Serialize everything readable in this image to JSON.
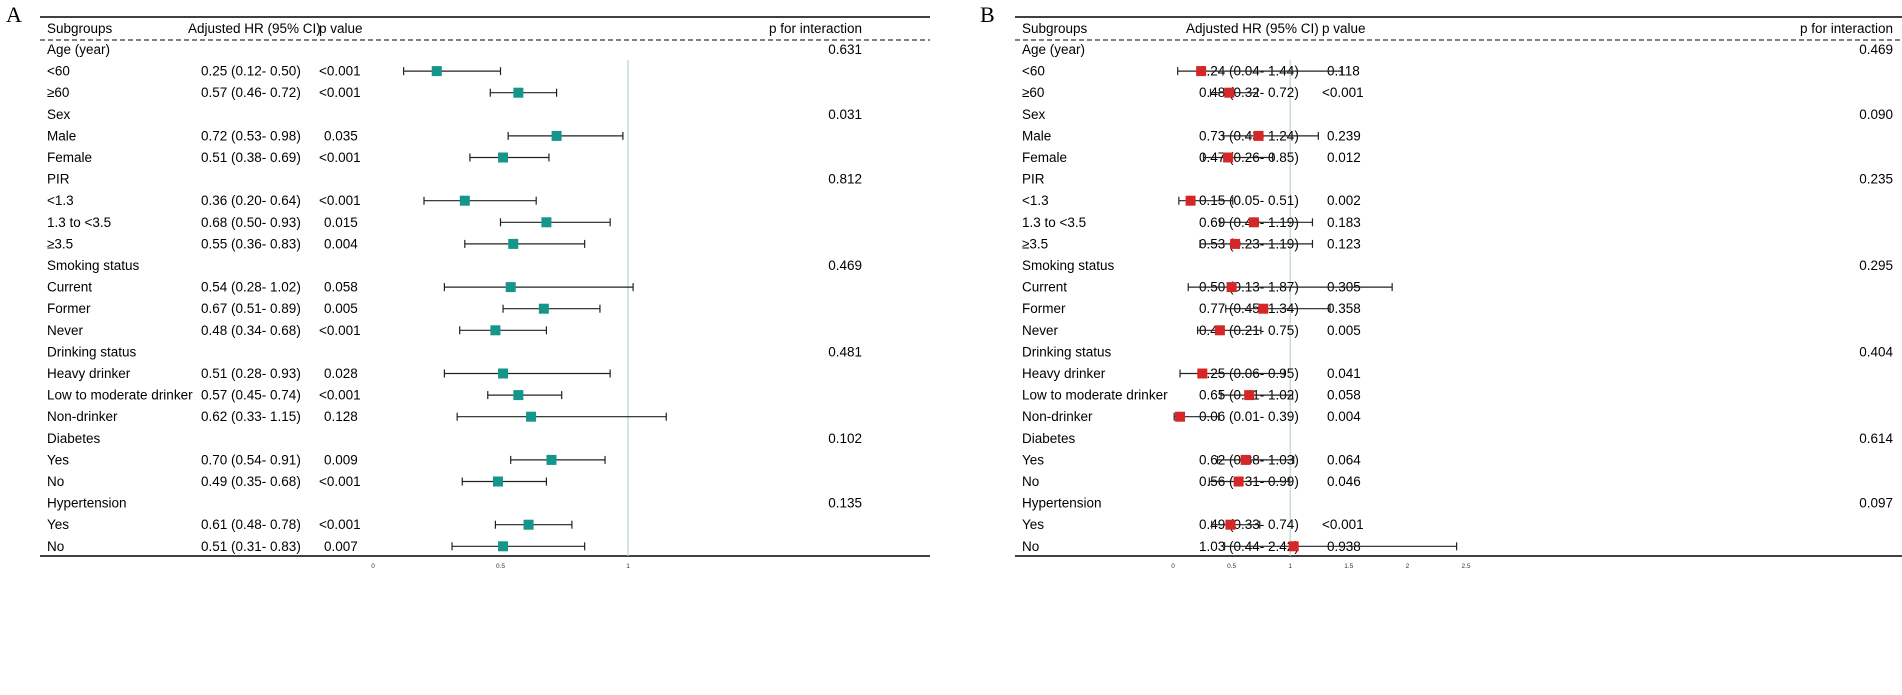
{
  "colors": {
    "panel_a_marker": "#14968a",
    "panel_b_marker": "#d62728",
    "ref_line": "#b9d6c4"
  },
  "chart_data": [
    {
      "type": "forest",
      "panel": "A",
      "headers": [
        "Subgroups",
        "Adjusted HR (95% CI)",
        "p value",
        "p for interaction"
      ],
      "xlim": [
        0,
        1
      ],
      "ticks": [
        "0",
        "0.5",
        "1"
      ],
      "tick_values": [
        0,
        0.5,
        1
      ],
      "reference": 1,
      "rows": [
        {
          "label": "Age (year)",
          "header": true,
          "p_int": "0.631"
        },
        {
          "label": "<60",
          "hr_text": "0.25 (0.12- 0.50)",
          "p": "<0.001",
          "hr": 0.25,
          "lo": 0.12,
          "hi": 0.5
        },
        {
          "label": "≥60",
          "hr_text": "0.57 (0.46- 0.72)",
          "p": "<0.001",
          "hr": 0.57,
          "lo": 0.46,
          "hi": 0.72
        },
        {
          "label": "Sex",
          "header": true,
          "p_int": "0.031"
        },
        {
          "label": "Male",
          "hr_text": "0.72 (0.53- 0.98)",
          "p": "0.035",
          "hr": 0.72,
          "lo": 0.53,
          "hi": 0.98
        },
        {
          "label": "Female",
          "hr_text": "0.51 (0.38- 0.69)",
          "p": "<0.001",
          "hr": 0.51,
          "lo": 0.38,
          "hi": 0.69
        },
        {
          "label": "PIR",
          "header": true,
          "p_int": "0.812"
        },
        {
          "label": "<1.3",
          "hr_text": "0.36 (0.20- 0.64)",
          "p": "<0.001",
          "hr": 0.36,
          "lo": 0.2,
          "hi": 0.64
        },
        {
          "label": "1.3 to <3.5",
          "hr_text": "0.68 (0.50- 0.93)",
          "p": "0.015",
          "hr": 0.68,
          "lo": 0.5,
          "hi": 0.93
        },
        {
          "label": "≥3.5",
          "hr_text": "0.55 (0.36- 0.83)",
          "p": "0.004",
          "hr": 0.55,
          "lo": 0.36,
          "hi": 0.83
        },
        {
          "label": "Smoking status",
          "header": true,
          "p_int": "0.469"
        },
        {
          "label": "Current",
          "hr_text": "0.54 (0.28- 1.02)",
          "p": "0.058",
          "hr": 0.54,
          "lo": 0.28,
          "hi": 1.02
        },
        {
          "label": "Former",
          "hr_text": "0.67 (0.51- 0.89)",
          "p": "0.005",
          "hr": 0.67,
          "lo": 0.51,
          "hi": 0.89
        },
        {
          "label": "Never",
          "hr_text": "0.48 (0.34- 0.68)",
          "p": "<0.001",
          "hr": 0.48,
          "lo": 0.34,
          "hi": 0.68
        },
        {
          "label": "Drinking status",
          "header": true,
          "p_int": "0.481"
        },
        {
          "label": "Heavy drinker",
          "hr_text": "0.51 (0.28- 0.93)",
          "p": "0.028",
          "hr": 0.51,
          "lo": 0.28,
          "hi": 0.93
        },
        {
          "label": "Low to moderate drinker",
          "hr_text": "0.57 (0.45- 0.74)",
          "p": "<0.001",
          "hr": 0.57,
          "lo": 0.45,
          "hi": 0.74
        },
        {
          "label": "Non-drinker",
          "hr_text": "0.62 (0.33- 1.15)",
          "p": "0.128",
          "hr": 0.62,
          "lo": 0.33,
          "hi": 1.15
        },
        {
          "label": "Diabetes",
          "header": true,
          "p_int": "0.102"
        },
        {
          "label": "Yes",
          "hr_text": "0.70 (0.54- 0.91)",
          "p": "0.009",
          "hr": 0.7,
          "lo": 0.54,
          "hi": 0.91
        },
        {
          "label": "No",
          "hr_text": "0.49 (0.35- 0.68)",
          "p": "<0.001",
          "hr": 0.49,
          "lo": 0.35,
          "hi": 0.68
        },
        {
          "label": "Hypertension",
          "header": true,
          "p_int": "0.135"
        },
        {
          "label": "Yes",
          "hr_text": "0.61 (0.48- 0.78)",
          "p": "<0.001",
          "hr": 0.61,
          "lo": 0.48,
          "hi": 0.78
        },
        {
          "label": "No",
          "hr_text": "0.51 (0.31- 0.83)",
          "p": "0.007",
          "hr": 0.51,
          "lo": 0.31,
          "hi": 0.83
        }
      ]
    },
    {
      "type": "forest",
      "panel": "B",
      "headers": [
        "Subgroups",
        "Adjusted HR (95% CI)",
        "p value",
        "p for interaction"
      ],
      "xlim": [
        0,
        2.5
      ],
      "ticks": [
        "0",
        "0.5",
        "1",
        "1.5",
        "2",
        "2.5"
      ],
      "tick_values": [
        0,
        0.5,
        1,
        1.5,
        2,
        2.5
      ],
      "reference": 1,
      "rows": [
        {
          "label": "Age (year)",
          "header": true,
          "p_int": "0.469"
        },
        {
          "label": "<60",
          "hr_text": "0.24 (0.04- 1.44)",
          "p": "0.118",
          "hr": 0.24,
          "lo": 0.04,
          "hi": 1.44
        },
        {
          "label": "≥60",
          "hr_text": "0.48 (0.32- 0.72)",
          "p": "<0.001",
          "hr": 0.48,
          "lo": 0.32,
          "hi": 0.72
        },
        {
          "label": "Sex",
          "header": true,
          "p_int": "0.090"
        },
        {
          "label": "Male",
          "hr_text": "0.73 (0.43- 1.24)",
          "p": "0.239",
          "hr": 0.73,
          "lo": 0.43,
          "hi": 1.24
        },
        {
          "label": "Female",
          "hr_text": "0.47 (0.26- 0.85)",
          "p": "0.012",
          "hr": 0.47,
          "lo": 0.26,
          "hi": 0.85
        },
        {
          "label": "PIR",
          "header": true,
          "p_int": "0.235"
        },
        {
          "label": "<1.3",
          "hr_text": "0.15 (0.05- 0.51)",
          "p": "0.002",
          "hr": 0.15,
          "lo": 0.05,
          "hi": 0.51
        },
        {
          "label": "1.3 to <3.5",
          "hr_text": "0.69 (0.40- 1.19)",
          "p": "0.183",
          "hr": 0.69,
          "lo": 0.4,
          "hi": 1.19
        },
        {
          "label": "≥3.5",
          "hr_text": "0.53 (0.23- 1.19)",
          "p": "0.123",
          "hr": 0.53,
          "lo": 0.23,
          "hi": 1.19
        },
        {
          "label": "Smoking status",
          "header": true,
          "p_int": "0.295"
        },
        {
          "label": "Current",
          "hr_text": "0.50 (0.13- 1.87)",
          "p": "0.305",
          "hr": 0.5,
          "lo": 0.13,
          "hi": 1.87
        },
        {
          "label": "Former",
          "hr_text": "0.77 (0.45- 1.34)",
          "p": "0.358",
          "hr": 0.77,
          "lo": 0.45,
          "hi": 1.34
        },
        {
          "label": "Never",
          "hr_text": "0.40 (0.21- 0.75)",
          "p": "0.005",
          "hr": 0.4,
          "lo": 0.21,
          "hi": 0.75
        },
        {
          "label": "Drinking status",
          "header": true,
          "p_int": "0.404"
        },
        {
          "label": "Heavy drinker",
          "hr_text": "0.25 (0.06- 0.95)",
          "p": "0.041",
          "hr": 0.25,
          "lo": 0.06,
          "hi": 0.95
        },
        {
          "label": "Low to moderate drinker",
          "hr_text": "0.65 (0.41- 1.02)",
          "p": "0.058",
          "hr": 0.65,
          "lo": 0.41,
          "hi": 1.02
        },
        {
          "label": "Non-drinker",
          "hr_text": "0.06 (0.01- 0.39)",
          "p": "0.004",
          "hr": 0.06,
          "lo": 0.01,
          "hi": 0.39
        },
        {
          "label": "Diabetes",
          "header": true,
          "p_int": "0.614"
        },
        {
          "label": "Yes",
          "hr_text": "0.62 (0.38- 1.03)",
          "p": "0.064",
          "hr": 0.62,
          "lo": 0.38,
          "hi": 1.03
        },
        {
          "label": "No",
          "hr_text": "0.56 (0.31- 0.99)",
          "p": "0.046",
          "hr": 0.56,
          "lo": 0.31,
          "hi": 0.99
        },
        {
          "label": "Hypertension",
          "header": true,
          "p_int": "0.097"
        },
        {
          "label": "Yes",
          "hr_text": "0.49 (0.33- 0.74)",
          "p": "<0.001",
          "hr": 0.49,
          "lo": 0.33,
          "hi": 0.74
        },
        {
          "label": "No",
          "hr_text": "1.03 (0.44- 2.42)",
          "p": "0.938",
          "hr": 1.03,
          "lo": 0.44,
          "hi": 2.42
        }
      ]
    }
  ]
}
